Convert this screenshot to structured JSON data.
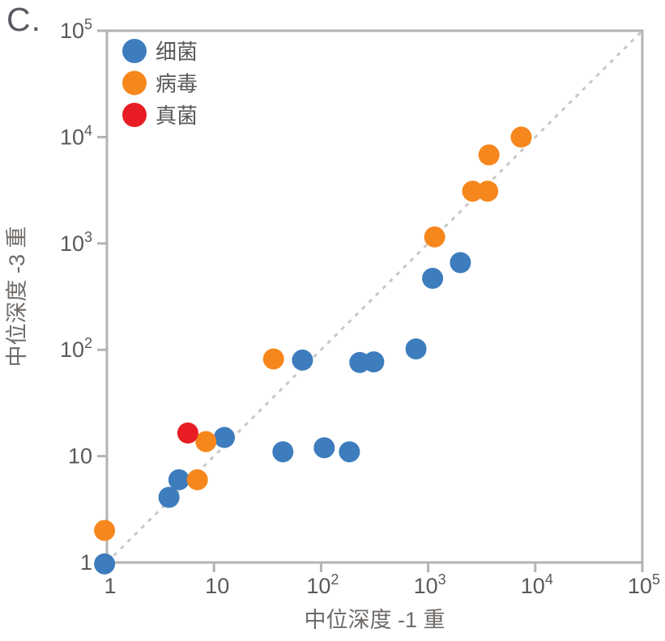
{
  "panel_label": "C.",
  "chart_data": {
    "type": "scatter",
    "title": "",
    "xlabel": "中位深度 -1 重",
    "ylabel": "中位深度 -3 重",
    "xscale": "log",
    "yscale": "log",
    "xlim": [
      1,
      100000
    ],
    "ylim": [
      1,
      100000
    ],
    "grid": false,
    "identity_line": true,
    "legend_position": "upper-left",
    "tick_values": [
      1,
      10,
      100,
      1000,
      10000,
      100000
    ],
    "tick_labels": [
      {
        "base": "1",
        "exp": ""
      },
      {
        "base": "10",
        "exp": ""
      },
      {
        "base": "10",
        "exp": "2"
      },
      {
        "base": "10",
        "exp": "3"
      },
      {
        "base": "10",
        "exp": "4"
      },
      {
        "base": "10",
        "exp": "5"
      }
    ],
    "series": [
      {
        "name": "细菌",
        "color": "#3D7CBD",
        "points": [
          [
            0.95,
            0.97
          ],
          [
            3.8,
            4.1
          ],
          [
            4.7,
            6
          ],
          [
            12.5,
            15
          ],
          [
            44,
            11
          ],
          [
            67,
            80
          ],
          [
            107,
            12
          ],
          [
            184,
            11
          ],
          [
            230,
            76
          ],
          [
            310,
            77
          ],
          [
            770,
            102
          ],
          [
            1100,
            470
          ],
          [
            2000,
            660
          ]
        ]
      },
      {
        "name": "病毒",
        "color": "#F6871D",
        "points": [
          [
            0.95,
            2
          ],
          [
            7,
            6
          ],
          [
            8.4,
            13.7
          ],
          [
            36,
            82
          ],
          [
            1150,
            1150
          ],
          [
            2600,
            3100
          ],
          [
            3600,
            3100
          ],
          [
            3700,
            6800
          ],
          [
            7400,
            10000
          ]
        ]
      },
      {
        "name": "真菌",
        "color": "#E81C24",
        "points": [
          [
            5.7,
            16.5
          ]
        ]
      }
    ],
    "colors": {
      "spine": "#b3b3b3",
      "tick_text": "#5b5958",
      "axis_label_text": "#6f6b68",
      "legend_text": "#59585a",
      "identity_line": "#c8c8c8",
      "background": "#ffffff"
    }
  }
}
